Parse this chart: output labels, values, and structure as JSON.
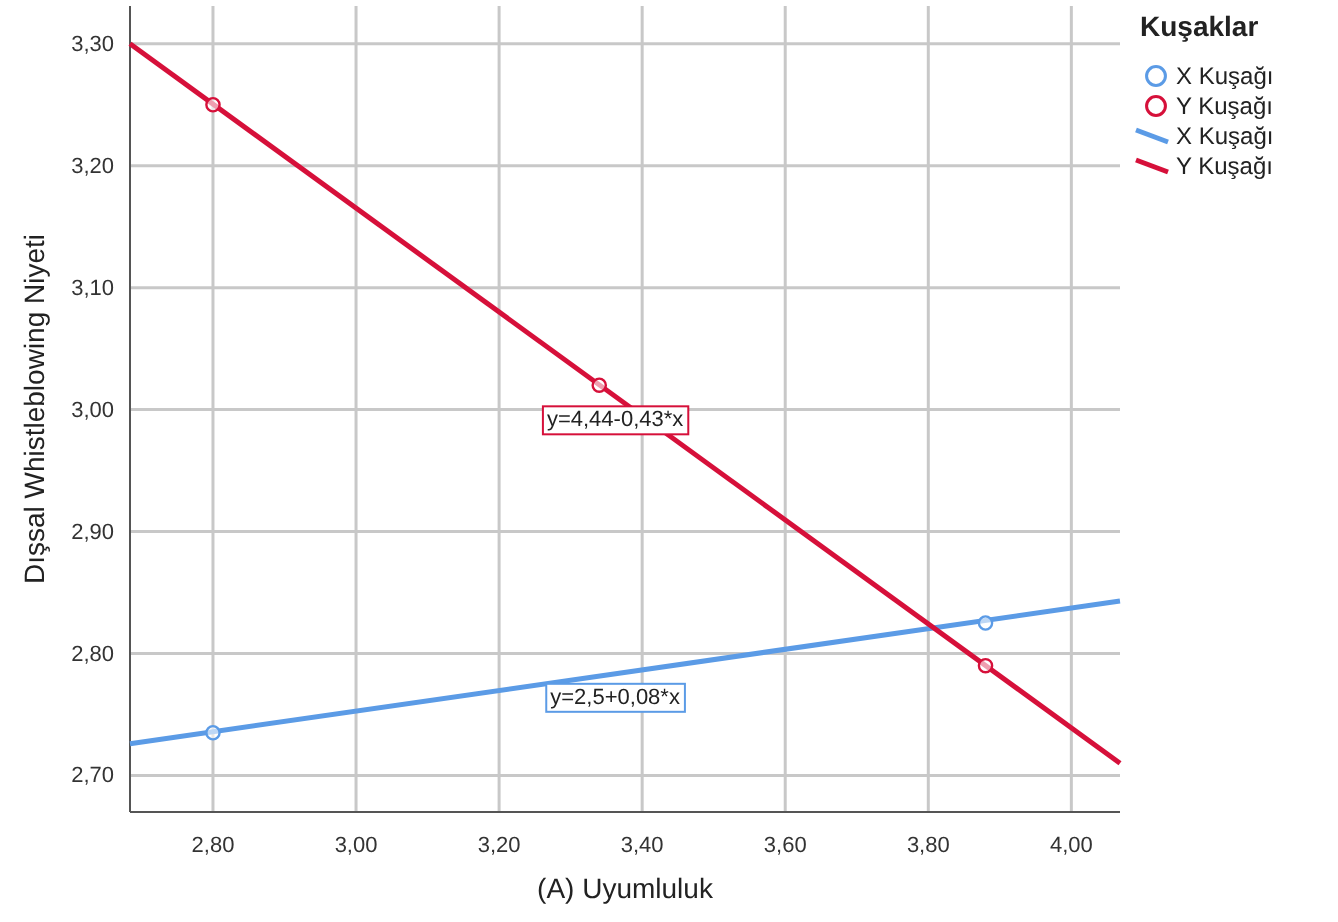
{
  "chart_data": {
    "type": "scatter",
    "xlabel": "(A) Uyumluluk",
    "ylabel": "Dışsal Whistleblowing Niyeti",
    "legend_title": "Kuşaklar",
    "legend": "right",
    "grid": true,
    "marker": "circle",
    "line_style": "solid",
    "xlim": [
      2.684,
      4.068
    ],
    "xticks": [
      {
        "value": 2.8,
        "label": "2,80"
      },
      {
        "value": 3.0,
        "label": "3,00"
      },
      {
        "value": 3.2,
        "label": "3,20"
      },
      {
        "value": 3.4,
        "label": "3,40"
      },
      {
        "value": 3.6,
        "label": "3,60"
      },
      {
        "value": 3.8,
        "label": "3,80"
      },
      {
        "value": 4.0,
        "label": "4,00"
      }
    ],
    "ylim": [
      2.67,
      3.331
    ],
    "yticks": [
      {
        "value": 2.7,
        "label": "2,70"
      },
      {
        "value": 2.8,
        "label": "2,80"
      },
      {
        "value": 2.9,
        "label": "2,90"
      },
      {
        "value": 3.0,
        "label": "3,00"
      },
      {
        "value": 3.1,
        "label": "3,10"
      },
      {
        "value": 3.2,
        "label": "3,20"
      },
      {
        "value": 3.3,
        "label": "3,30"
      }
    ],
    "series": [
      {
        "name": "X Kuşağı",
        "color": "#5b9be6",
        "x": [
          2.8,
          3.88
        ],
        "values": [
          2.735,
          2.825
        ]
      },
      {
        "name": "Y Kuşağı",
        "color": "#d6103a",
        "x": [
          2.8,
          3.34,
          3.88
        ],
        "values": [
          3.25,
          3.02,
          2.79
        ]
      },
      {
        "name": "X Kuşağı",
        "type": "line",
        "marker": "none",
        "color": "#5b9be6",
        "x": [
          2.684,
          4.068
        ],
        "values": [
          2.726,
          2.843
        ]
      },
      {
        "name": "Y Kuşağı",
        "type": "line",
        "marker": "none",
        "color": "#d6103a",
        "x": [
          2.684,
          4.068
        ],
        "values": [
          3.3,
          2.71
        ]
      }
    ],
    "annotations": [
      "y=4,44-0,43*x",
      "y=2,5+0,08*x"
    ]
  }
}
